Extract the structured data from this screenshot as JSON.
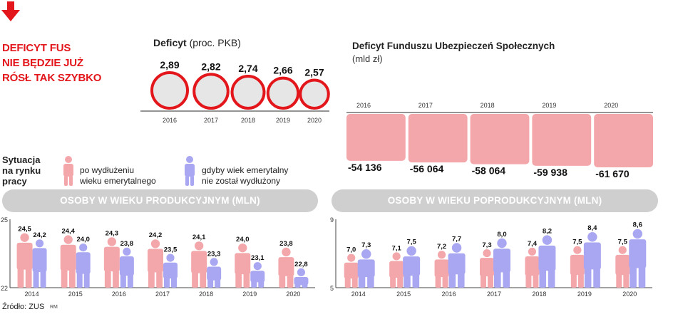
{
  "headline": [
    "DEFICYT FUS",
    "NIE BĘDZIE JUŻ",
    "RÓSŁ TAK SZYBKO"
  ],
  "colors": {
    "accent": "#e3161b",
    "pink": "#f4a7ab",
    "purple": "#a9a6f2",
    "pill": "#cfcfcf",
    "circle_fill": "#e6e6e6",
    "deficit_box": "#f4a7ab"
  },
  "source": "Źródło: ZUS",
  "initials": "RM",
  "chart_data": [
    {
      "type": "bubble",
      "title": "Deficyt",
      "subtitle": "(proc. PKB)",
      "categories": [
        "2016",
        "2017",
        "2018",
        "2019",
        "2020"
      ],
      "values": [
        2.89,
        2.82,
        2.74,
        2.66,
        2.57
      ],
      "labels": [
        "2,89",
        "2,82",
        "2,74",
        "2,66",
        "2,57"
      ]
    },
    {
      "type": "bar",
      "title": "Deficyt Funduszu Ubezpieczeń Społecznych",
      "subtitle": "(mld zł)",
      "categories": [
        "2016",
        "2017",
        "2018",
        "2019",
        "2020"
      ],
      "values": [
        -54136,
        -56064,
        -58064,
        -59938,
        -61670
      ],
      "labels": [
        "-54 136",
        "-56 064",
        "-58 064",
        "-59 938",
        "-61 670"
      ]
    },
    {
      "type": "bar",
      "title": "OSOBY W WIEKU PRODUKCYJNYM (MLN)",
      "categories": [
        "2014",
        "2015",
        "2016",
        "2017",
        "2018",
        "2019",
        "2020"
      ],
      "ylim": [
        22,
        25
      ],
      "yticks": [
        "25",
        "22"
      ],
      "series": [
        {
          "name": "po wydłużeniu wieku emerytalnego",
          "values": [
            24.5,
            24.4,
            24.3,
            24.2,
            24.1,
            24.0,
            23.8
          ],
          "labels": [
            "24,5",
            "24,4",
            "24,3",
            "24,2",
            "24,1",
            "24,0",
            "23,8"
          ]
        },
        {
          "name": "gdyby wiek emerytalny nie został wydłużony",
          "values": [
            24.2,
            24.0,
            23.8,
            23.5,
            23.3,
            23.1,
            22.8
          ],
          "labels": [
            "24,2",
            "24,0",
            "23,8",
            "23,5",
            "23,3",
            "23,1",
            "22,8"
          ]
        }
      ]
    },
    {
      "type": "bar",
      "title": "OSOBY W WIEKU POPRODUKCYJNYM (MLN)",
      "categories": [
        "2014",
        "2015",
        "2016",
        "2017",
        "2018",
        "2019",
        "2020"
      ],
      "ylim": [
        5,
        9
      ],
      "yticks": [
        "9",
        "5"
      ],
      "series": [
        {
          "name": "po wydłużeniu wieku emerytalnego",
          "values": [
            7.0,
            7.1,
            7.2,
            7.3,
            7.4,
            7.5,
            7.5
          ],
          "labels": [
            "7,0",
            "7,1",
            "7,2",
            "7,3",
            "7,4",
            "7,5",
            "7,5"
          ]
        },
        {
          "name": "gdyby wiek emerytalny nie został wydłużony",
          "values": [
            7.3,
            7.5,
            7.7,
            8.0,
            8.2,
            8.4,
            8.6
          ],
          "labels": [
            "7,3",
            "7,5",
            "7,7",
            "8,0",
            "8,2",
            "8,4",
            "8,6"
          ]
        }
      ]
    }
  ],
  "legend": {
    "heading": [
      "Sytuacja",
      "na rynku",
      "pracy"
    ],
    "item1": [
      "po wydłużeniu",
      "wieku emerytalnego"
    ],
    "item2": [
      "gdyby wiek emerytalny",
      "nie został wydłużony"
    ]
  }
}
